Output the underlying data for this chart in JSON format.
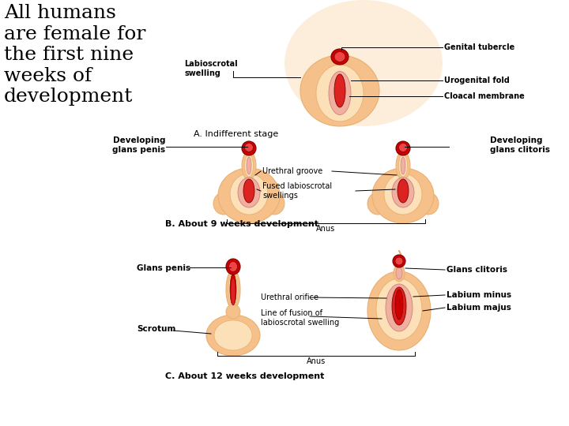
{
  "title_text": "All humans\nare female for\nthe first nine\nweeks of\ndevelopment",
  "title_fontsize": 18,
  "bg_color": "#ffffff",
  "skin_color": "#f5c08a",
  "skin_light": "#fce0b8",
  "skin_mid": "#e8b070",
  "red_dark": "#cc0000",
  "red_mid": "#dd2222",
  "pink_color": "#f0b0a0",
  "label_fontsize": 7,
  "bold_label_fontsize": 7.5,
  "section_a_label": "A. Indifferent stage",
  "section_b_label": "B. About 9 weeks development",
  "section_c_label": "C. About 12 weeks development"
}
